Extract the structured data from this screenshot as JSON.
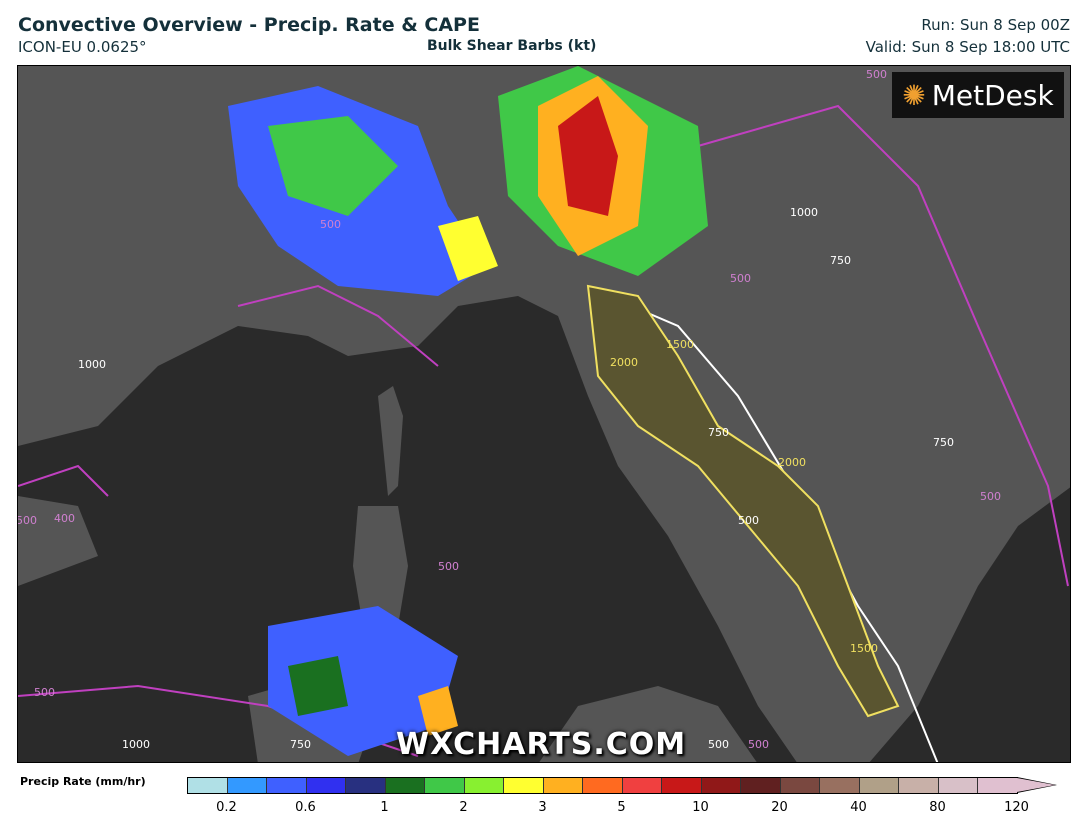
{
  "header": {
    "title": "Convective Overview - Precip. Rate & CAPE",
    "model": "ICON-EU 0.0625°",
    "subtitle": "Bulk Shear Barbs (kt)",
    "run": "Run: Sun 8 Sep 00Z",
    "valid": "Valid: Sun 8 Sep 18:00 UTC"
  },
  "map": {
    "logo": "MetDesk",
    "watermark": "WXCHARTS.COM",
    "contour_labels": [
      "500",
      "500",
      "1000",
      "750",
      "1500",
      "2000",
      "2000",
      "750",
      "500",
      "500",
      "500",
      "400",
      "500",
      "500",
      "1000",
      "750",
      "500",
      "1500",
      "750",
      "500",
      "500",
      "1000"
    ],
    "colors": {
      "sea": "#2a2a2a",
      "land": "#555555",
      "cape_low": "#c040c0",
      "cape_mid": "#ffffff",
      "cape_high": "#f0e060"
    }
  },
  "legend": {
    "label": "Precip Rate (mm/hr)",
    "colors": [
      "#b0e0e6",
      "#3399ff",
      "#3f60ff",
      "#3030f0",
      "#283080",
      "#1a7020",
      "#40c848",
      "#88f030",
      "#ffff30",
      "#ffb020",
      "#ff6a20",
      "#f04040",
      "#c81818",
      "#901818",
      "#602020",
      "#7a4840",
      "#987060",
      "#b0a088",
      "#c8b0a8",
      "#d8c0c8",
      "#e0c0d0"
    ],
    "ticks": [
      "0.2",
      "0.6",
      "1",
      "2",
      "3",
      "5",
      "10",
      "20",
      "40",
      "80",
      "120"
    ]
  }
}
